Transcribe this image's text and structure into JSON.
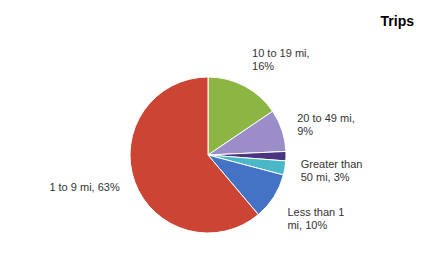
{
  "chart_data": {
    "type": "pie",
    "title": "Trips",
    "categories": [
      "10 to 19 mi,\n16%",
      "20 to 49 mi,\n9%",
      null,
      "Greater than\n50 mi, 3%",
      "Less than 1\nmi, 10%",
      "1 to 9 mi, 63%"
    ],
    "values": [
      16,
      9,
      2,
      3,
      10,
      63
    ],
    "colors": [
      "#8db544",
      "#9b8dc8",
      "#4a3580",
      "#4ab8c8",
      "#4472c4",
      "#cc4433"
    ]
  }
}
